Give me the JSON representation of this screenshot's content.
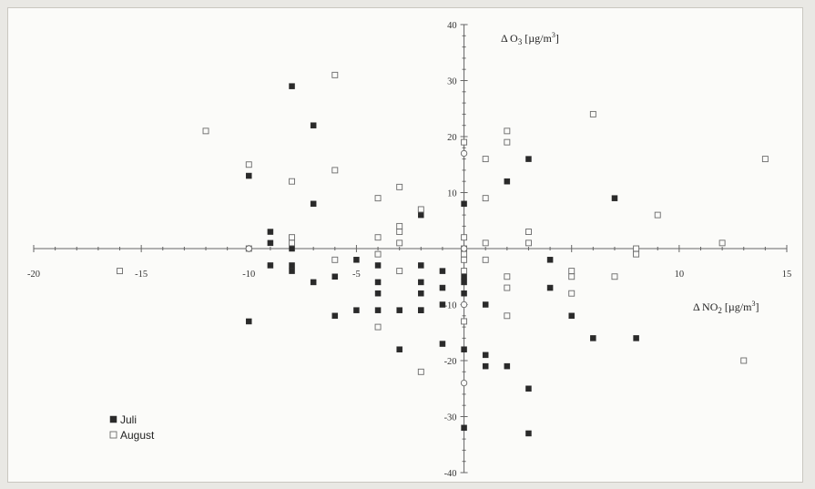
{
  "chart_data": {
    "type": "scatter",
    "xlabel": {
      "main": "Δ NO",
      "sub": "2",
      "unit": "[µg/m",
      "sup": "3",
      "end": "]"
    },
    "ylabel": {
      "main": "Δ O",
      "sub": "3",
      "unit": "[µg/m",
      "sup": "3",
      "end": "]"
    },
    "xlim": [
      -20,
      15
    ],
    "ylim": [
      -40,
      40
    ],
    "xticks": [
      -20,
      -15,
      -10,
      -5,
      0,
      5,
      10,
      15
    ],
    "yticks": [
      -40,
      -30,
      -20,
      -10,
      10,
      20,
      30,
      40
    ],
    "grid": false,
    "legend_position": "bottom-left",
    "series": [
      {
        "name": "Juli",
        "marker": "filled-square",
        "color": "#2a2a2a",
        "points": [
          [
            -8,
            29
          ],
          [
            -7,
            22
          ],
          [
            -10,
            13
          ],
          [
            -7,
            8
          ],
          [
            -9,
            3
          ],
          [
            -9,
            1
          ],
          [
            -8,
            2
          ],
          [
            -8,
            0
          ],
          [
            -9,
            -3
          ],
          [
            -8,
            -3
          ],
          [
            -8,
            -4
          ],
          [
            -7,
            -6
          ],
          [
            -6,
            -5
          ],
          [
            -5,
            -2
          ],
          [
            -4,
            -1
          ],
          [
            -4,
            -3
          ],
          [
            -4,
            -6
          ],
          [
            -4,
            -8
          ],
          [
            -2,
            -3
          ],
          [
            -2,
            -6
          ],
          [
            -2,
            -8
          ],
          [
            -2,
            -11
          ],
          [
            -6,
            -12
          ],
          [
            -5,
            -11
          ],
          [
            -4,
            -11
          ],
          [
            -3,
            -11
          ],
          [
            -2,
            -11
          ],
          [
            -10,
            -13
          ],
          [
            -3,
            -18
          ],
          [
            -2,
            6
          ],
          [
            0,
            8
          ],
          [
            -1,
            -4
          ],
          [
            -1,
            -7
          ],
          [
            -1,
            -10
          ],
          [
            -1,
            -17
          ],
          [
            0,
            -5
          ],
          [
            0,
            -6
          ],
          [
            0,
            -8
          ],
          [
            0,
            -18
          ],
          [
            1,
            -10
          ],
          [
            1,
            -19
          ],
          [
            1,
            -21
          ],
          [
            2,
            12
          ],
          [
            2,
            -21
          ],
          [
            3,
            16
          ],
          [
            3,
            -25
          ],
          [
            3,
            -33
          ],
          [
            4,
            -2
          ],
          [
            4,
            -7
          ],
          [
            5,
            -12
          ],
          [
            6,
            -16
          ],
          [
            7,
            9
          ],
          [
            8,
            -1
          ],
          [
            8,
            -16
          ],
          [
            0,
            -32
          ]
        ]
      },
      {
        "name": "August",
        "marker": "open-square",
        "color": "#6a6a6a",
        "points": [
          [
            -12,
            21
          ],
          [
            -16,
            -4
          ],
          [
            -10,
            15
          ],
          [
            -10,
            0
          ],
          [
            -8,
            12
          ],
          [
            -8,
            2
          ],
          [
            -8,
            1
          ],
          [
            -6,
            31
          ],
          [
            -6,
            14
          ],
          [
            -6,
            -2
          ],
          [
            -4,
            9
          ],
          [
            -4,
            2
          ],
          [
            -4,
            -1
          ],
          [
            -3,
            11
          ],
          [
            -3,
            4
          ],
          [
            -3,
            3
          ],
          [
            -3,
            1
          ],
          [
            -3,
            -4
          ],
          [
            -2,
            7
          ],
          [
            -4,
            -14
          ],
          [
            -2,
            -22
          ],
          [
            0,
            19
          ],
          [
            0,
            2
          ],
          [
            0,
            0
          ],
          [
            0,
            -1
          ],
          [
            0,
            -2
          ],
          [
            0,
            -4
          ],
          [
            0,
            -13
          ],
          [
            1,
            16
          ],
          [
            1,
            9
          ],
          [
            1,
            1
          ],
          [
            1,
            -2
          ],
          [
            2,
            21
          ],
          [
            2,
            19
          ],
          [
            2,
            -5
          ],
          [
            2,
            -7
          ],
          [
            2,
            -12
          ],
          [
            3,
            3
          ],
          [
            3,
            1
          ],
          [
            5,
            -4
          ],
          [
            5,
            -5
          ],
          [
            5,
            -8
          ],
          [
            6,
            24
          ],
          [
            7,
            -5
          ],
          [
            8,
            0
          ],
          [
            8,
            -1
          ],
          [
            9,
            6
          ],
          [
            12,
            1
          ],
          [
            13,
            -20
          ],
          [
            14,
            16
          ]
        ]
      }
    ],
    "origin_markers": [
      [
        -10,
        0
      ],
      [
        0,
        0
      ],
      [
        0,
        17
      ],
      [
        0,
        -10
      ],
      [
        0,
        -24
      ]
    ]
  }
}
